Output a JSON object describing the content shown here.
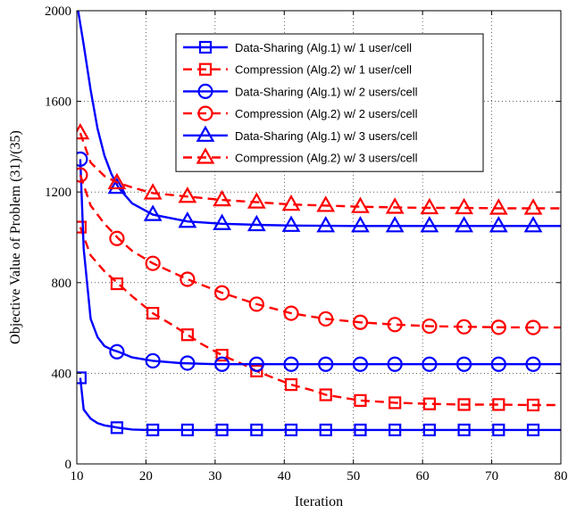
{
  "chart_data": {
    "type": "line",
    "title": "",
    "xlabel": "Iteration",
    "ylabel": "Objective Value of Problem (31)/(35)",
    "xlim": [
      10,
      80
    ],
    "ylim": [
      0,
      2000
    ],
    "xticks": [
      10,
      20,
      30,
      40,
      50,
      60,
      70,
      80
    ],
    "yticks": [
      0,
      400,
      800,
      1200,
      1600,
      2000
    ],
    "grid": true,
    "legend_position": "top-right",
    "series": [
      {
        "name": "Data-Sharing (Alg.1) w/ 1 user/cell",
        "color": "#0000ff",
        "dash": "solid",
        "marker": "square",
        "x": [
          10.5,
          11,
          12,
          13,
          14,
          15,
          16,
          18,
          20,
          25,
          30,
          40,
          50,
          60,
          70,
          80
        ],
        "y": [
          380,
          240,
          200,
          180,
          170,
          165,
          160,
          152,
          150,
          150,
          150,
          150,
          150,
          150,
          150,
          150
        ],
        "marker_x": [
          10.5,
          15.8,
          21,
          26,
          31,
          36,
          41,
          46,
          51,
          56,
          61,
          66,
          71,
          76
        ],
        "marker_y": [
          380,
          160,
          150,
          150,
          150,
          150,
          150,
          150,
          150,
          150,
          150,
          150,
          150,
          150
        ]
      },
      {
        "name": "Compression (Alg.2) w/ 1 user/cell",
        "color": "#ff0000",
        "dash": "dashed",
        "marker": "square",
        "x": [
          10.5,
          12,
          14,
          16,
          18,
          21,
          24,
          26,
          28,
          31,
          34,
          36,
          38,
          41,
          44,
          46,
          48,
          51,
          56,
          61,
          66,
          71,
          76,
          80
        ],
        "y": [
          1045,
          920,
          850,
          795,
          740,
          665,
          610,
          570,
          530,
          480,
          440,
          410,
          385,
          350,
          325,
          305,
          295,
          280,
          270,
          265,
          262,
          262,
          260,
          260
        ],
        "marker_x": [
          10.5,
          15.8,
          21,
          26,
          31,
          36,
          41,
          46,
          51,
          56,
          61,
          66,
          71,
          76
        ],
        "marker_y": [
          1045,
          795,
          665,
          570,
          480,
          410,
          350,
          305,
          280,
          270,
          265,
          262,
          262,
          260
        ]
      },
      {
        "name": "Data-Sharing (Alg.1) w/ 2 users/cell",
        "color": "#0000ff",
        "dash": "solid",
        "marker": "circle",
        "x": [
          10.5,
          11,
          12,
          13,
          14,
          15,
          16,
          18,
          21,
          25,
          30,
          40,
          50,
          60,
          70,
          80
        ],
        "y": [
          1345,
          950,
          640,
          560,
          520,
          505,
          495,
          470,
          455,
          445,
          440,
          440,
          440,
          440,
          440,
          440
        ],
        "marker_x": [
          10.5,
          15.8,
          21,
          26,
          31,
          36,
          41,
          46,
          51,
          56,
          61,
          66,
          71,
          76
        ],
        "marker_y": [
          1345,
          495,
          455,
          445,
          440,
          440,
          440,
          440,
          440,
          440,
          440,
          440,
          440,
          440
        ]
      },
      {
        "name": "Compression (Alg.2) w/ 2 users/cell",
        "color": "#ff0000",
        "dash": "dashed",
        "marker": "circle",
        "x": [
          10.5,
          12,
          14,
          16,
          18,
          21,
          26,
          31,
          36,
          41,
          46,
          51,
          56,
          61,
          66,
          71,
          76,
          80
        ],
        "y": [
          1275,
          1140,
          1060,
          995,
          940,
          885,
          815,
          755,
          705,
          665,
          640,
          625,
          615,
          608,
          605,
          603,
          602,
          602
        ],
        "marker_x": [
          10.5,
          15.8,
          21,
          26,
          31,
          36,
          41,
          46,
          51,
          56,
          61,
          66,
          71,
          76
        ],
        "marker_y": [
          1275,
          995,
          885,
          815,
          755,
          705,
          665,
          640,
          625,
          615,
          608,
          605,
          603,
          602
        ]
      },
      {
        "name": "Data-Sharing (Alg.1) w/ 3 users/cell",
        "color": "#0000ff",
        "dash": "solid",
        "marker": "triangle",
        "x": [
          10.2,
          11,
          12,
          13,
          14,
          15,
          16,
          18,
          21,
          26,
          31,
          36,
          41,
          50,
          60,
          70,
          80
        ],
        "y": [
          2000,
          1850,
          1650,
          1480,
          1360,
          1280,
          1220,
          1150,
          1100,
          1070,
          1060,
          1055,
          1052,
          1050,
          1050,
          1050,
          1050
        ],
        "marker_x": [
          15.8,
          21,
          26,
          31,
          36,
          41,
          46,
          51,
          56,
          61,
          66,
          71,
          76
        ],
        "marker_y": [
          1220,
          1100,
          1070,
          1060,
          1055,
          1052,
          1050,
          1050,
          1050,
          1050,
          1050,
          1050,
          1050
        ]
      },
      {
        "name": "Compression (Alg.2) w/ 3 users/cell",
        "color": "#ff0000",
        "dash": "dashed",
        "marker": "triangle",
        "x": [
          10.5,
          12,
          14,
          16,
          18,
          21,
          26,
          31,
          36,
          41,
          46,
          51,
          56,
          61,
          66,
          71,
          76,
          80
        ],
        "y": [
          1460,
          1330,
          1270,
          1240,
          1220,
          1195,
          1180,
          1165,
          1155,
          1145,
          1140,
          1135,
          1132,
          1130,
          1130,
          1128,
          1128,
          1128
        ],
        "marker_x": [
          10.5,
          15.8,
          21,
          26,
          31,
          36,
          41,
          46,
          51,
          56,
          61,
          66,
          71,
          76
        ],
        "marker_y": [
          1460,
          1240,
          1195,
          1180,
          1165,
          1155,
          1145,
          1140,
          1135,
          1132,
          1130,
          1130,
          1128,
          1128
        ]
      }
    ]
  }
}
